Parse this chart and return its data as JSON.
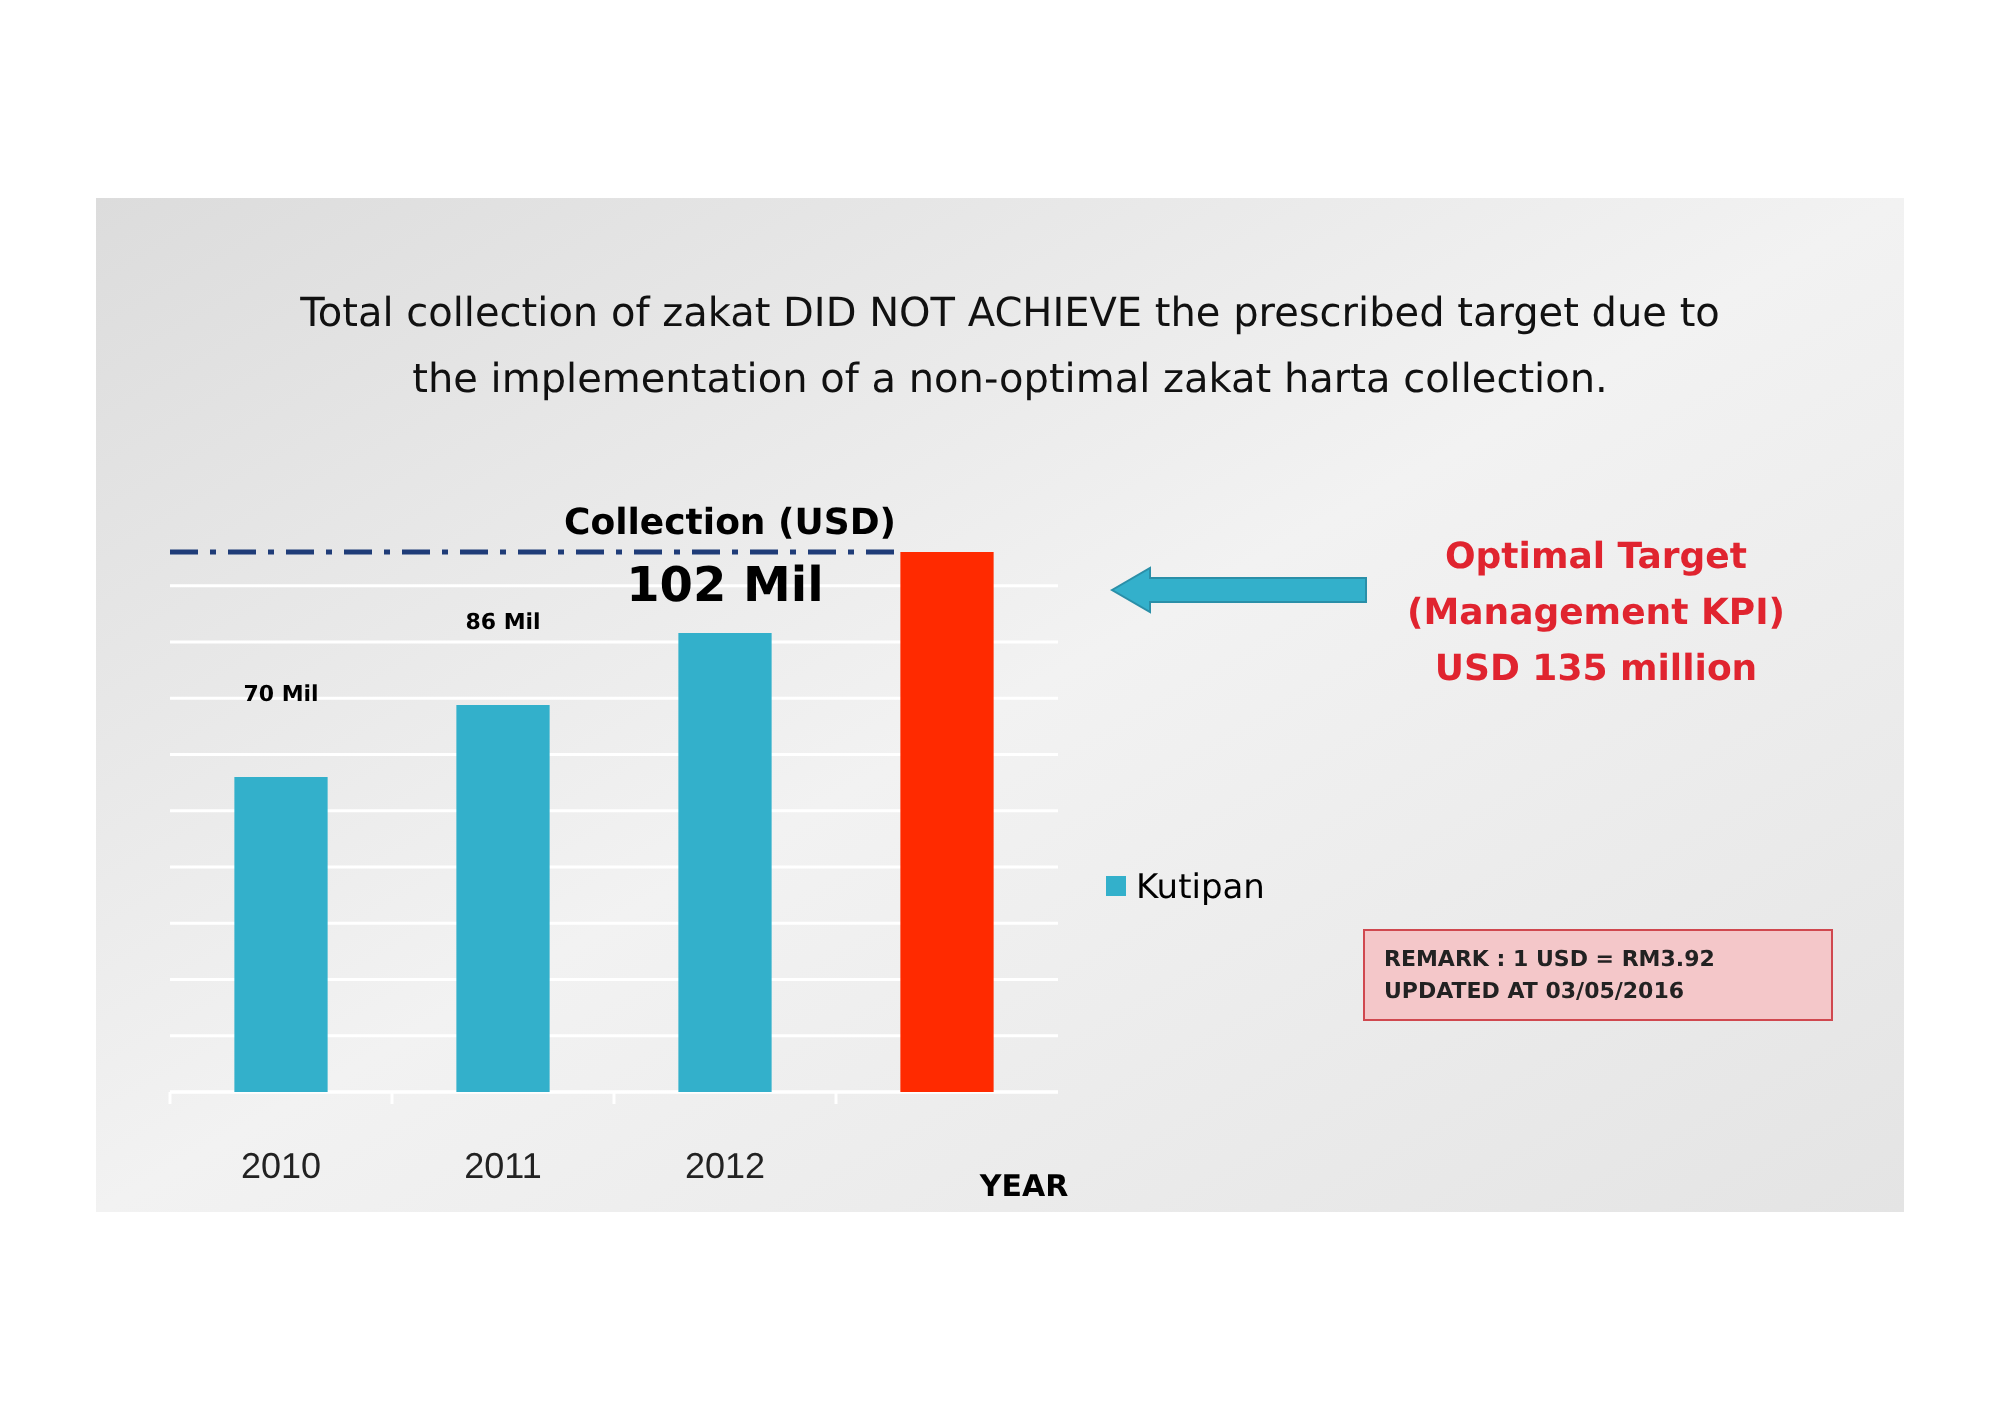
{
  "chart_data": {
    "type": "bar",
    "title": "Total collection of zakat DID NOT ACHIEVE the prescribed target due to the implementation of a non-optimal zakat harta collection.",
    "subtitle": "Collection (USD)",
    "xlabel": "YEAR",
    "categories": [
      "2010",
      "2011",
      "2012",
      null
    ],
    "series": [
      {
        "name": "Kutipan",
        "color": "#33b0cb",
        "colors": [
          "#33b0cb",
          "#33b0cb",
          "#33b0cb",
          "#ff2a00"
        ],
        "values": [
          70,
          86,
          102,
          120
        ],
        "value_labels": [
          "70 Mil",
          "86 Mil",
          "102 Mil",
          null
        ]
      }
    ],
    "ylim": [
      0,
      120
    ],
    "yticks": [
      {
        "value": 0,
        "label": null
      },
      {
        "value": 12.5,
        "label": null
      },
      {
        "value": 25,
        "label": null
      },
      {
        "value": 37.5,
        "label": null
      },
      {
        "value": 50,
        "label": null
      },
      {
        "value": 62.5,
        "label": null
      },
      {
        "value": 75,
        "label": null
      },
      {
        "value": 87.5,
        "label": null
      },
      {
        "value": 100,
        "label": null
      },
      {
        "value": 112.5,
        "label": null
      }
    ],
    "grid": "y",
    "legend": "right",
    "tick_labels": "x",
    "ref_lines": [
      {
        "axis": "y",
        "value": 120,
        "color": "#1f3c78",
        "line_style": "dashdot"
      }
    ],
    "annotations": [
      "Optimal Target\n(Management KPI)\nUSD 135 million",
      "REMARK : 1 USD = RM3.92\nUPDATED AT  03/05/2016"
    ]
  }
}
